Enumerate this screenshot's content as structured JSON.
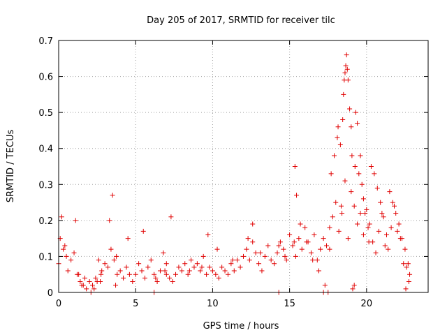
{
  "chart_data": {
    "type": "scatter",
    "title": "Day 205 of 2017, SRMTID for receiver tilc",
    "xlabel": "GPS time / hours",
    "ylabel": "SRMTID / TECUs",
    "xlim": [
      0,
      24
    ],
    "ylim": [
      0,
      0.7
    ],
    "xticks": [
      "0",
      "5",
      "10",
      "15",
      "20"
    ],
    "yticks": [
      "0",
      "0.1",
      "0.2",
      "0.3",
      "0.4",
      "0.5",
      "0.6",
      "0.7"
    ],
    "grid": true,
    "marker": "plus",
    "color": "#e00000",
    "series": [
      {
        "name": "SRMTID",
        "x": [
          0.0,
          0.2,
          0.4,
          0.6,
          0.8,
          1.0,
          1.2,
          1.4,
          1.6,
          1.8,
          2.0,
          2.2,
          2.4,
          2.6,
          2.8,
          3.0,
          3.2,
          3.4,
          3.6,
          3.8,
          4.0,
          4.2,
          4.4,
          4.6,
          4.8,
          5.0,
          5.2,
          5.4,
          5.6,
          5.8,
          6.0,
          6.2,
          6.4,
          6.6,
          6.8,
          7.0,
          7.2,
          7.4,
          7.6,
          7.8,
          8.0,
          8.2,
          8.4,
          8.6,
          8.8,
          9.0,
          9.2,
          9.4,
          9.6,
          9.8,
          10.0,
          10.2,
          10.4,
          10.6,
          10.8,
          11.0,
          11.2,
          11.4,
          11.6,
          11.8,
          12.0,
          12.2,
          12.4,
          12.6,
          12.8,
          13.0,
          13.2,
          13.4,
          13.6,
          13.8,
          14.0,
          14.2,
          14.4,
          14.6,
          14.8,
          15.0,
          15.2,
          15.4,
          15.6,
          15.8,
          16.0,
          16.2,
          16.4,
          16.6,
          16.8,
          17.0,
          17.2,
          17.4,
          17.6,
          17.8,
          18.0,
          18.2,
          18.4,
          18.6,
          18.8,
          19.0,
          19.2,
          19.4,
          19.6,
          19.8,
          20.0,
          20.2,
          20.4,
          20.6,
          20.8,
          21.0,
          21.2,
          21.4,
          21.6,
          21.8,
          22.0,
          22.2,
          22.4,
          22.6,
          22.8,
          0.1,
          0.3,
          0.5,
          1.1,
          1.3,
          1.5,
          1.7,
          2.1,
          2.3,
          2.5,
          2.7,
          2.75,
          3.3,
          3.5,
          3.7,
          3.75,
          4.5,
          5.5,
          6.3,
          6.9,
          7.0,
          7.3,
          8.5,
          9.3,
          9.7,
          10.3,
          11.3,
          12.3,
          12.6,
          13.1,
          14.3,
          14.7,
          15.3,
          15.35,
          15.45,
          15.7,
          16.1,
          16.5,
          16.9,
          17.3,
          17.5,
          17.6,
          17.7,
          17.9,
          18.1,
          18.15,
          18.3,
          18.35,
          18.45,
          18.5,
          18.55,
          18.6,
          18.65,
          18.7,
          18.75,
          18.8,
          18.9,
          19.0,
          19.05,
          19.1,
          19.2,
          19.25,
          19.3,
          19.4,
          19.5,
          19.6,
          19.7,
          19.8,
          19.9,
          20.1,
          20.15,
          20.3,
          20.5,
          20.7,
          20.9,
          21.1,
          21.3,
          21.5,
          21.7,
          21.9,
          22.1,
          22.3,
          22.5,
          22.7,
          22.75,
          22.55,
          6.2,
          14.3,
          17.2
        ],
        "y": [
          0.08,
          0.21,
          0.13,
          0.06,
          0.09,
          0.11,
          0.05,
          0.03,
          0.02,
          0.01,
          0.03,
          0.02,
          0.04,
          0.09,
          0.06,
          0.08,
          0.07,
          0.12,
          0.09,
          0.05,
          0.06,
          0.04,
          0.07,
          0.05,
          0.03,
          0.05,
          0.08,
          0.06,
          0.04,
          0.07,
          0.09,
          0.05,
          0.03,
          0.06,
          0.11,
          0.05,
          0.04,
          0.03,
          0.05,
          0.07,
          0.06,
          0.08,
          0.05,
          0.09,
          0.07,
          0.08,
          0.06,
          0.1,
          0.05,
          0.07,
          0.06,
          0.05,
          0.04,
          0.07,
          0.06,
          0.05,
          0.08,
          0.06,
          0.09,
          0.07,
          0.1,
          0.12,
          0.09,
          0.14,
          0.11,
          0.08,
          0.06,
          0.1,
          0.13,
          0.09,
          0.08,
          0.11,
          0.14,
          0.12,
          0.09,
          0.16,
          0.13,
          0.1,
          0.15,
          0.12,
          0.18,
          0.14,
          0.11,
          0.16,
          0.09,
          0.12,
          0.15,
          0.13,
          0.18,
          0.21,
          0.25,
          0.17,
          0.22,
          0.31,
          0.15,
          0.28,
          0.24,
          0.19,
          0.22,
          0.16,
          0.23,
          0.19,
          0.14,
          0.11,
          0.17,
          0.22,
          0.13,
          0.12,
          0.18,
          0.24,
          0.17,
          0.15,
          0.08,
          0.07,
          0.05,
          0.15,
          0.12,
          0.1,
          0.2,
          0.05,
          0.02,
          0.04,
          0.0,
          0.01,
          0.03,
          0.03,
          0.05,
          0.2,
          0.27,
          0.02,
          0.1,
          0.15,
          0.17,
          0.04,
          0.06,
          0.08,
          0.21,
          0.06,
          0.07,
          0.16,
          0.12,
          0.09,
          0.15,
          0.19,
          0.11,
          0.13,
          0.1,
          0.14,
          0.35,
          0.27,
          0.19,
          0.14,
          0.09,
          0.06,
          0.02,
          0.0,
          0.12,
          0.33,
          0.38,
          0.43,
          0.46,
          0.41,
          0.24,
          0.48,
          0.55,
          0.59,
          0.61,
          0.63,
          0.66,
          0.62,
          0.59,
          0.51,
          0.46,
          0.38,
          0.01,
          0.02,
          0.35,
          0.5,
          0.47,
          0.33,
          0.38,
          0.3,
          0.26,
          0.22,
          0.18,
          0.14,
          0.35,
          0.33,
          0.29,
          0.25,
          0.21,
          0.16,
          0.28,
          0.25,
          0.22,
          0.19,
          0.15,
          0.12,
          0.08,
          0.03,
          0.01,
          0.0,
          0.0,
          0.0
        ]
      }
    ]
  }
}
